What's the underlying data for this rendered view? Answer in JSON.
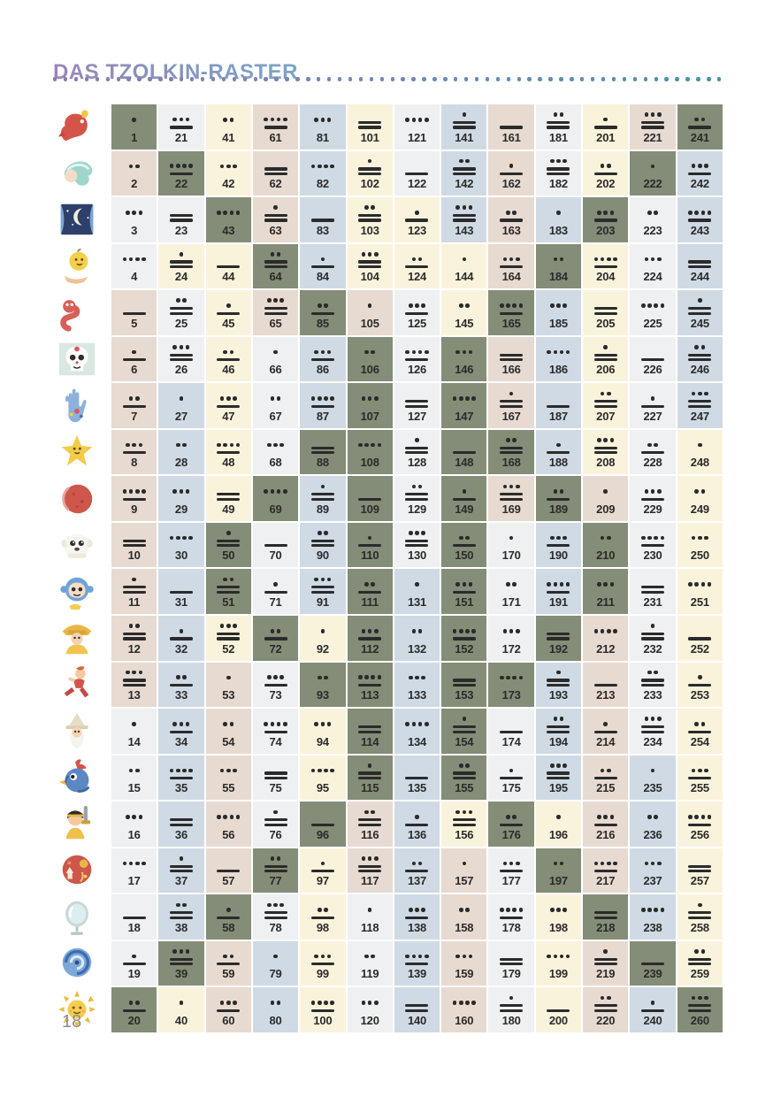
{
  "page": {
    "title": "DAS TZOLKIN-RASTER",
    "page_number": "18"
  },
  "colors": {
    "title_gradient": [
      "#9c86b8",
      "#8a90bc",
      "#7ba5c9"
    ],
    "divider_dots": [
      "#8e7cb2",
      "#7189ba",
      "#4b93a9"
    ],
    "ink": "#2b2b2b",
    "page_number_gray": "#8d8d8d",
    "cell": {
      "G": "#848d77",
      "W": "#eff0f1",
      "C": "#faf3dc",
      "P": "#e7dad1",
      "B": "#cfdae4"
    },
    "cell_legend": {
      "G": "sage-green-portal",
      "W": "light-gray",
      "C": "cream",
      "P": "rose-beige",
      "B": "light-blue"
    }
  },
  "day_signs": [
    {
      "sign": "dragon",
      "icon": "dragon-icon"
    },
    {
      "sign": "wind",
      "icon": "wind-icon"
    },
    {
      "sign": "night",
      "icon": "night-icon"
    },
    {
      "sign": "seed",
      "icon": "seed-icon"
    },
    {
      "sign": "serpent",
      "icon": "serpent-icon"
    },
    {
      "sign": "worldbridger",
      "icon": "skull-icon"
    },
    {
      "sign": "hand",
      "icon": "hand-icon"
    },
    {
      "sign": "star",
      "icon": "star-icon"
    },
    {
      "sign": "moon",
      "icon": "moon-icon"
    },
    {
      "sign": "dog",
      "icon": "dog-icon"
    },
    {
      "sign": "monkey",
      "icon": "monkey-icon"
    },
    {
      "sign": "human",
      "icon": "child-icon"
    },
    {
      "sign": "skywalker",
      "icon": "runner-icon"
    },
    {
      "sign": "wizard",
      "icon": "wizard-icon"
    },
    {
      "sign": "eagle",
      "icon": "bird-icon"
    },
    {
      "sign": "warrior",
      "icon": "warrior-icon"
    },
    {
      "sign": "earth",
      "icon": "planet-icon"
    },
    {
      "sign": "mirror",
      "icon": "mirror-icon"
    },
    {
      "sign": "storm",
      "icon": "spiral-icon"
    },
    {
      "sign": "sun",
      "icon": "sun-icon"
    }
  ],
  "grid": {
    "rows": 20,
    "columns": 13,
    "cells": [
      [
        [
          1,
          1,
          "G"
        ],
        [
          21,
          8,
          "W"
        ],
        [
          41,
          2,
          "C"
        ],
        [
          61,
          9,
          "P"
        ],
        [
          81,
          3,
          "B"
        ],
        [
          101,
          10,
          "C"
        ],
        [
          121,
          4,
          "W"
        ],
        [
          141,
          11,
          "B"
        ],
        [
          161,
          5,
          "P"
        ],
        [
          181,
          12,
          "W"
        ],
        [
          201,
          6,
          "C"
        ],
        [
          221,
          13,
          "P"
        ],
        [
          241,
          7,
          "G"
        ]
      ],
      [
        [
          2,
          2,
          "P"
        ],
        [
          22,
          9,
          "G"
        ],
        [
          42,
          3,
          "C"
        ],
        [
          62,
          10,
          "P"
        ],
        [
          82,
          4,
          "B"
        ],
        [
          102,
          11,
          "C"
        ],
        [
          122,
          5,
          "W"
        ],
        [
          142,
          12,
          "B"
        ],
        [
          162,
          6,
          "P"
        ],
        [
          182,
          13,
          "W"
        ],
        [
          202,
          7,
          "C"
        ],
        [
          222,
          1,
          "G"
        ],
        [
          242,
          8,
          "B"
        ]
      ],
      [
        [
          3,
          3,
          "W"
        ],
        [
          23,
          10,
          "W"
        ],
        [
          43,
          4,
          "G"
        ],
        [
          63,
          11,
          "P"
        ],
        [
          83,
          5,
          "B"
        ],
        [
          103,
          12,
          "C"
        ],
        [
          123,
          6,
          "C"
        ],
        [
          143,
          13,
          "B"
        ],
        [
          163,
          7,
          "P"
        ],
        [
          183,
          1,
          "B"
        ],
        [
          203,
          8,
          "G"
        ],
        [
          223,
          2,
          "W"
        ],
        [
          243,
          9,
          "B"
        ]
      ],
      [
        [
          4,
          4,
          "W"
        ],
        [
          24,
          11,
          "C"
        ],
        [
          44,
          5,
          "C"
        ],
        [
          64,
          12,
          "G"
        ],
        [
          84,
          6,
          "B"
        ],
        [
          104,
          13,
          "C"
        ],
        [
          124,
          7,
          "C"
        ],
        [
          144,
          1,
          "C"
        ],
        [
          164,
          8,
          "P"
        ],
        [
          184,
          2,
          "G"
        ],
        [
          204,
          9,
          "C"
        ],
        [
          224,
          3,
          "W"
        ],
        [
          244,
          10,
          "B"
        ]
      ],
      [
        [
          5,
          5,
          "P"
        ],
        [
          25,
          12,
          "W"
        ],
        [
          45,
          6,
          "C"
        ],
        [
          65,
          13,
          "P"
        ],
        [
          85,
          7,
          "G"
        ],
        [
          105,
          1,
          "P"
        ],
        [
          125,
          8,
          "W"
        ],
        [
          145,
          2,
          "C"
        ],
        [
          165,
          9,
          "G"
        ],
        [
          185,
          3,
          "B"
        ],
        [
          205,
          10,
          "C"
        ],
        [
          225,
          4,
          "W"
        ],
        [
          245,
          11,
          "B"
        ]
      ],
      [
        [
          6,
          6,
          "P"
        ],
        [
          26,
          13,
          "W"
        ],
        [
          46,
          7,
          "C"
        ],
        [
          66,
          1,
          "W"
        ],
        [
          86,
          8,
          "B"
        ],
        [
          106,
          2,
          "G"
        ],
        [
          126,
          9,
          "W"
        ],
        [
          146,
          3,
          "G"
        ],
        [
          166,
          10,
          "P"
        ],
        [
          186,
          4,
          "B"
        ],
        [
          206,
          11,
          "C"
        ],
        [
          226,
          5,
          "W"
        ],
        [
          246,
          12,
          "B"
        ]
      ],
      [
        [
          7,
          7,
          "P"
        ],
        [
          27,
          1,
          "B"
        ],
        [
          47,
          8,
          "C"
        ],
        [
          67,
          2,
          "W"
        ],
        [
          87,
          9,
          "B"
        ],
        [
          107,
          3,
          "G"
        ],
        [
          127,
          10,
          "W"
        ],
        [
          147,
          4,
          "G"
        ],
        [
          167,
          11,
          "P"
        ],
        [
          187,
          5,
          "B"
        ],
        [
          207,
          12,
          "C"
        ],
        [
          227,
          6,
          "W"
        ],
        [
          247,
          13,
          "B"
        ]
      ],
      [
        [
          8,
          8,
          "P"
        ],
        [
          28,
          2,
          "B"
        ],
        [
          48,
          9,
          "C"
        ],
        [
          68,
          3,
          "W"
        ],
        [
          88,
          10,
          "G"
        ],
        [
          108,
          4,
          "G"
        ],
        [
          128,
          11,
          "W"
        ],
        [
          148,
          5,
          "G"
        ],
        [
          168,
          12,
          "G"
        ],
        [
          188,
          6,
          "B"
        ],
        [
          208,
          13,
          "C"
        ],
        [
          228,
          7,
          "W"
        ],
        [
          248,
          1,
          "C"
        ]
      ],
      [
        [
          9,
          9,
          "P"
        ],
        [
          29,
          3,
          "B"
        ],
        [
          49,
          10,
          "C"
        ],
        [
          69,
          4,
          "G"
        ],
        [
          89,
          11,
          "B"
        ],
        [
          109,
          5,
          "G"
        ],
        [
          129,
          12,
          "W"
        ],
        [
          149,
          6,
          "G"
        ],
        [
          169,
          13,
          "P"
        ],
        [
          189,
          7,
          "G"
        ],
        [
          209,
          1,
          "P"
        ],
        [
          229,
          8,
          "W"
        ],
        [
          249,
          2,
          "C"
        ]
      ],
      [
        [
          10,
          10,
          "P"
        ],
        [
          30,
          4,
          "B"
        ],
        [
          50,
          11,
          "G"
        ],
        [
          70,
          5,
          "W"
        ],
        [
          90,
          12,
          "B"
        ],
        [
          110,
          6,
          "G"
        ],
        [
          130,
          13,
          "W"
        ],
        [
          150,
          7,
          "G"
        ],
        [
          170,
          1,
          "W"
        ],
        [
          190,
          8,
          "B"
        ],
        [
          210,
          2,
          "G"
        ],
        [
          230,
          9,
          "W"
        ],
        [
          250,
          3,
          "C"
        ]
      ],
      [
        [
          11,
          11,
          "P"
        ],
        [
          31,
          5,
          "B"
        ],
        [
          51,
          12,
          "G"
        ],
        [
          71,
          6,
          "W"
        ],
        [
          91,
          13,
          "B"
        ],
        [
          111,
          7,
          "G"
        ],
        [
          131,
          1,
          "B"
        ],
        [
          151,
          8,
          "G"
        ],
        [
          171,
          2,
          "W"
        ],
        [
          191,
          9,
          "B"
        ],
        [
          211,
          3,
          "G"
        ],
        [
          231,
          10,
          "W"
        ],
        [
          251,
          4,
          "C"
        ]
      ],
      [
        [
          12,
          12,
          "P"
        ],
        [
          32,
          6,
          "B"
        ],
        [
          52,
          13,
          "C"
        ],
        [
          72,
          7,
          "G"
        ],
        [
          92,
          1,
          "C"
        ],
        [
          112,
          8,
          "G"
        ],
        [
          132,
          2,
          "B"
        ],
        [
          152,
          9,
          "G"
        ],
        [
          172,
          3,
          "W"
        ],
        [
          192,
          10,
          "G"
        ],
        [
          212,
          4,
          "P"
        ],
        [
          232,
          11,
          "W"
        ],
        [
          252,
          5,
          "C"
        ]
      ],
      [
        [
          13,
          13,
          "P"
        ],
        [
          33,
          7,
          "B"
        ],
        [
          53,
          1,
          "P"
        ],
        [
          73,
          8,
          "W"
        ],
        [
          93,
          2,
          "G"
        ],
        [
          113,
          9,
          "G"
        ],
        [
          133,
          3,
          "B"
        ],
        [
          153,
          10,
          "G"
        ],
        [
          173,
          4,
          "G"
        ],
        [
          193,
          11,
          "B"
        ],
        [
          213,
          5,
          "P"
        ],
        [
          233,
          12,
          "W"
        ],
        [
          253,
          6,
          "C"
        ]
      ],
      [
        [
          14,
          1,
          "W"
        ],
        [
          34,
          8,
          "B"
        ],
        [
          54,
          2,
          "P"
        ],
        [
          74,
          9,
          "W"
        ],
        [
          94,
          3,
          "C"
        ],
        [
          114,
          10,
          "G"
        ],
        [
          134,
          4,
          "B"
        ],
        [
          154,
          11,
          "G"
        ],
        [
          174,
          5,
          "W"
        ],
        [
          194,
          12,
          "B"
        ],
        [
          214,
          6,
          "P"
        ],
        [
          234,
          13,
          "W"
        ],
        [
          254,
          7,
          "C"
        ]
      ],
      [
        [
          15,
          2,
          "W"
        ],
        [
          35,
          9,
          "B"
        ],
        [
          55,
          3,
          "P"
        ],
        [
          75,
          10,
          "W"
        ],
        [
          95,
          4,
          "C"
        ],
        [
          115,
          11,
          "G"
        ],
        [
          135,
          5,
          "B"
        ],
        [
          155,
          12,
          "G"
        ],
        [
          175,
          6,
          "W"
        ],
        [
          195,
          13,
          "B"
        ],
        [
          215,
          7,
          "P"
        ],
        [
          235,
          1,
          "B"
        ],
        [
          255,
          8,
          "C"
        ]
      ],
      [
        [
          16,
          3,
          "W"
        ],
        [
          36,
          10,
          "B"
        ],
        [
          56,
          4,
          "P"
        ],
        [
          76,
          11,
          "W"
        ],
        [
          96,
          5,
          "G"
        ],
        [
          116,
          12,
          "P"
        ],
        [
          136,
          6,
          "B"
        ],
        [
          156,
          13,
          "C"
        ],
        [
          176,
          7,
          "G"
        ],
        [
          196,
          1,
          "C"
        ],
        [
          216,
          8,
          "P"
        ],
        [
          236,
          2,
          "B"
        ],
        [
          256,
          9,
          "C"
        ]
      ],
      [
        [
          17,
          4,
          "W"
        ],
        [
          37,
          11,
          "B"
        ],
        [
          57,
          5,
          "P"
        ],
        [
          77,
          12,
          "G"
        ],
        [
          97,
          6,
          "C"
        ],
        [
          117,
          13,
          "P"
        ],
        [
          137,
          7,
          "B"
        ],
        [
          157,
          1,
          "P"
        ],
        [
          177,
          8,
          "W"
        ],
        [
          197,
          2,
          "G"
        ],
        [
          217,
          9,
          "P"
        ],
        [
          237,
          3,
          "B"
        ],
        [
          257,
          10,
          "C"
        ]
      ],
      [
        [
          18,
          5,
          "W"
        ],
        [
          38,
          12,
          "B"
        ],
        [
          58,
          6,
          "G"
        ],
        [
          78,
          13,
          "W"
        ],
        [
          98,
          7,
          "C"
        ],
        [
          118,
          1,
          "W"
        ],
        [
          138,
          8,
          "B"
        ],
        [
          158,
          2,
          "P"
        ],
        [
          178,
          9,
          "W"
        ],
        [
          198,
          3,
          "C"
        ],
        [
          218,
          10,
          "G"
        ],
        [
          238,
          4,
          "B"
        ],
        [
          258,
          11,
          "C"
        ]
      ],
      [
        [
          19,
          6,
          "W"
        ],
        [
          39,
          13,
          "G"
        ],
        [
          59,
          7,
          "P"
        ],
        [
          79,
          1,
          "B"
        ],
        [
          99,
          8,
          "C"
        ],
        [
          119,
          2,
          "W"
        ],
        [
          139,
          9,
          "B"
        ],
        [
          159,
          3,
          "P"
        ],
        [
          179,
          10,
          "W"
        ],
        [
          199,
          4,
          "C"
        ],
        [
          219,
          11,
          "P"
        ],
        [
          239,
          5,
          "G"
        ],
        [
          259,
          12,
          "C"
        ]
      ],
      [
        [
          20,
          7,
          "G"
        ],
        [
          40,
          1,
          "C"
        ],
        [
          60,
          8,
          "P"
        ],
        [
          80,
          2,
          "B"
        ],
        [
          100,
          9,
          "C"
        ],
        [
          120,
          3,
          "W"
        ],
        [
          140,
          10,
          "B"
        ],
        [
          160,
          4,
          "P"
        ],
        [
          180,
          11,
          "W"
        ],
        [
          200,
          5,
          "C"
        ],
        [
          220,
          12,
          "P"
        ],
        [
          240,
          6,
          "B"
        ],
        [
          260,
          13,
          "G"
        ]
      ]
    ]
  }
}
